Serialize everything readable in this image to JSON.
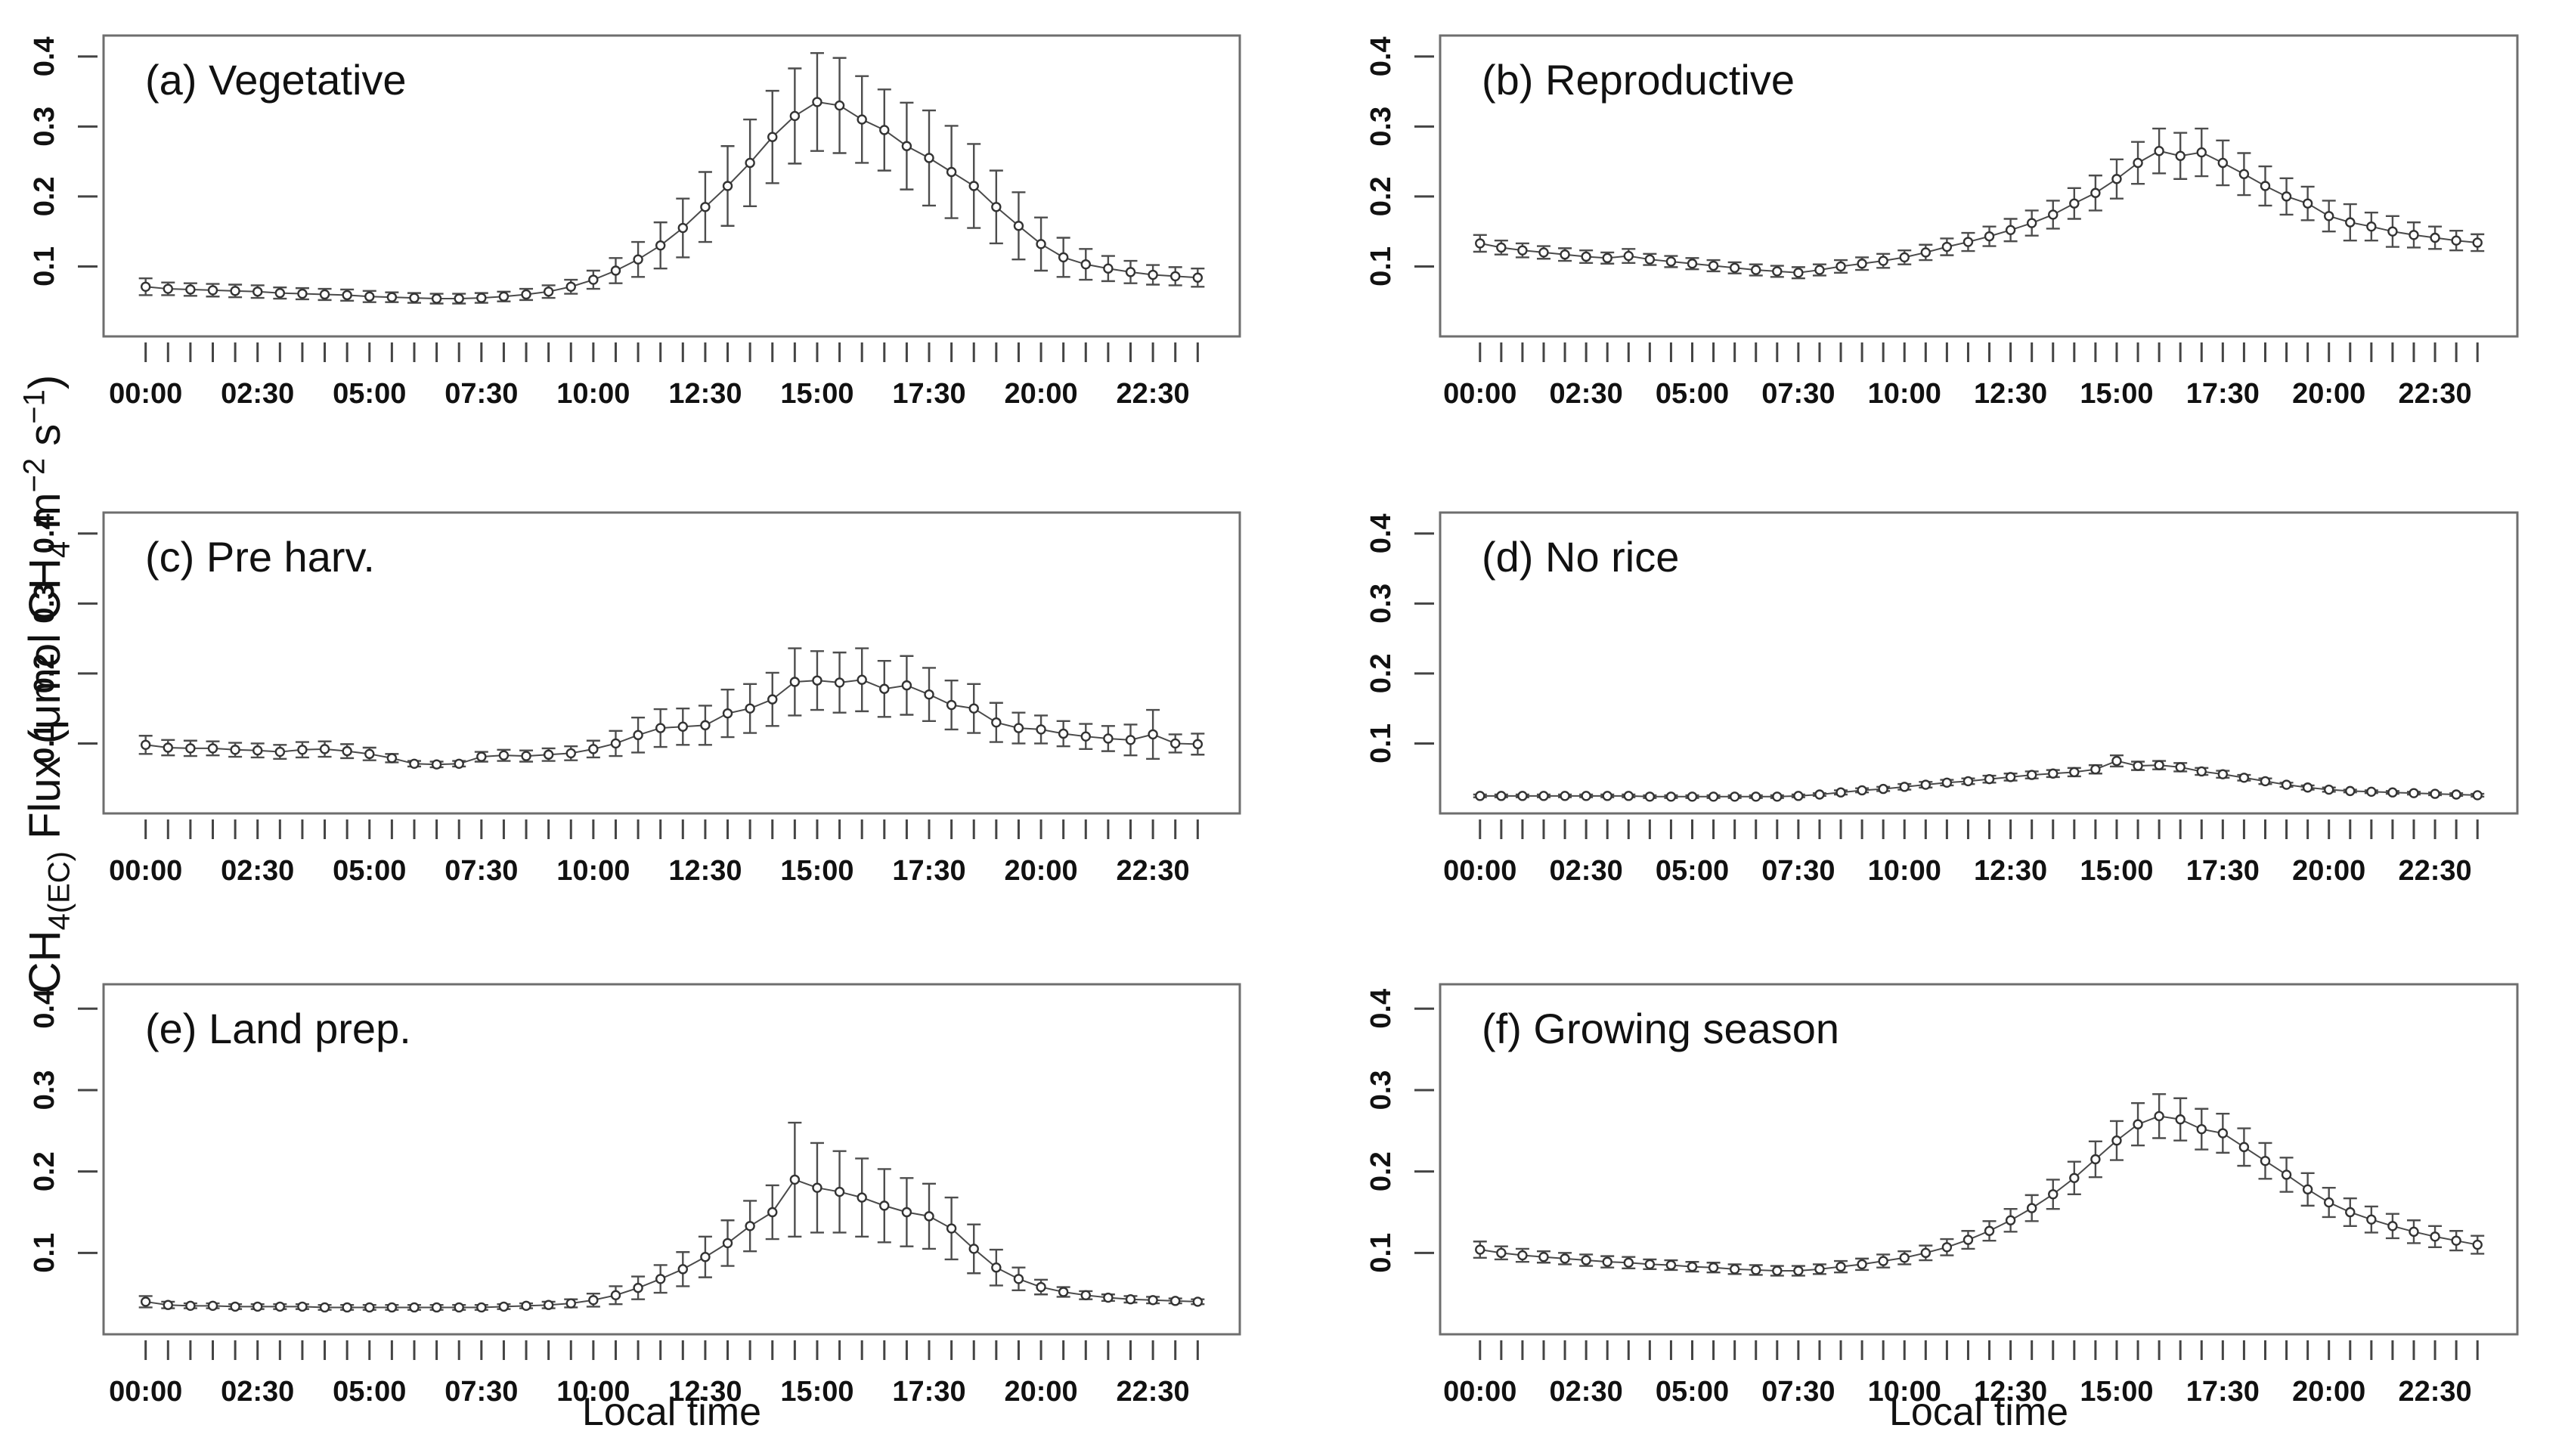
{
  "figure": {
    "background": "#ffffff",
    "box_color": "#6e6e6e",
    "line_color": "#4a4a4a",
    "marker_stroke": "#333333",
    "marker_fill": "#ffffff",
    "errorbar_color": "#4d4d4d",
    "tick_color": "#444444",
    "text_color": "#111111"
  },
  "chart_data": {
    "type": "line",
    "subtype": "diurnal means with error bars, 2x3 small-multiple panels",
    "xlabel": "Local time",
    "ylabel": "CH4(EC) Flux (μmol CH4 m−2 s−1)",
    "ylabel_rich": [
      {
        "text": "CH",
        "style": "normal"
      },
      {
        "text": "4(EC)",
        "style": "sub"
      },
      {
        "text": " Flux (μmol CH",
        "style": "normal"
      },
      {
        "text": "4",
        "style": "sub"
      },
      {
        "text": " m",
        "style": "normal"
      },
      {
        "text": "−2",
        "style": "sup"
      },
      {
        "text": " s",
        "style": "normal"
      },
      {
        "text": "−1",
        "style": "sup"
      },
      {
        "text": ")",
        "style": "normal"
      }
    ],
    "x": [
      "00:00",
      "00:30",
      "01:00",
      "01:30",
      "02:00",
      "02:30",
      "03:00",
      "03:30",
      "04:00",
      "04:30",
      "05:00",
      "05:30",
      "06:00",
      "06:30",
      "07:00",
      "07:30",
      "08:00",
      "08:30",
      "09:00",
      "09:30",
      "10:00",
      "10:30",
      "11:00",
      "11:30",
      "12:00",
      "12:30",
      "13:00",
      "13:30",
      "14:00",
      "14:30",
      "15:00",
      "15:30",
      "16:00",
      "16:30",
      "17:00",
      "17:30",
      "18:00",
      "18:30",
      "19:00",
      "19:30",
      "20:00",
      "20:30",
      "21:00",
      "21:30",
      "22:00",
      "22:30",
      "23:00",
      "23:30"
    ],
    "x_tick_labels": [
      "00:00",
      "02:30",
      "05:00",
      "07:30",
      "10:00",
      "12:30",
      "15:00",
      "17:30",
      "20:00",
      "22:30"
    ],
    "x_tick_label_every": 5,
    "y_ticks": [
      0.1,
      0.2,
      0.3,
      0.4
    ],
    "ylim": [
      0.0,
      0.43
    ],
    "grid": false,
    "legend": "none",
    "marker": "open-circle",
    "panel_layout": {
      "rows": 3,
      "cols": 2,
      "order": "row-major"
    },
    "panels": [
      {
        "id": "a",
        "label": "(a) Vegetative",
        "values": [
          0.071,
          0.068,
          0.067,
          0.066,
          0.065,
          0.064,
          0.062,
          0.061,
          0.06,
          0.059,
          0.057,
          0.056,
          0.055,
          0.054,
          0.054,
          0.055,
          0.057,
          0.06,
          0.064,
          0.071,
          0.081,
          0.094,
          0.11,
          0.13,
          0.155,
          0.185,
          0.215,
          0.248,
          0.285,
          0.315,
          0.335,
          0.33,
          0.31,
          0.295,
          0.272,
          0.255,
          0.235,
          0.215,
          0.185,
          0.158,
          0.132,
          0.113,
          0.103,
          0.097,
          0.092,
          0.088,
          0.086,
          0.084
        ],
        "errors": [
          0.012,
          0.009,
          0.009,
          0.009,
          0.009,
          0.009,
          0.008,
          0.008,
          0.008,
          0.008,
          0.008,
          0.007,
          0.007,
          0.007,
          0.007,
          0.007,
          0.007,
          0.008,
          0.009,
          0.01,
          0.013,
          0.018,
          0.025,
          0.033,
          0.042,
          0.05,
          0.057,
          0.062,
          0.066,
          0.068,
          0.07,
          0.068,
          0.062,
          0.058,
          0.062,
          0.068,
          0.066,
          0.06,
          0.052,
          0.048,
          0.038,
          0.028,
          0.022,
          0.018,
          0.016,
          0.014,
          0.013,
          0.013
        ]
      },
      {
        "id": "b",
        "label": "(b) Reproductive",
        "values": [
          0.133,
          0.127,
          0.123,
          0.12,
          0.117,
          0.114,
          0.112,
          0.115,
          0.11,
          0.107,
          0.104,
          0.101,
          0.098,
          0.095,
          0.093,
          0.091,
          0.095,
          0.1,
          0.104,
          0.108,
          0.113,
          0.12,
          0.128,
          0.135,
          0.143,
          0.152,
          0.162,
          0.174,
          0.19,
          0.205,
          0.225,
          0.248,
          0.265,
          0.258,
          0.263,
          0.248,
          0.232,
          0.215,
          0.2,
          0.19,
          0.172,
          0.163,
          0.157,
          0.15,
          0.145,
          0.141,
          0.137,
          0.134
        ],
        "errors": [
          0.012,
          0.01,
          0.01,
          0.009,
          0.009,
          0.009,
          0.008,
          0.01,
          0.008,
          0.008,
          0.008,
          0.008,
          0.008,
          0.008,
          0.008,
          0.008,
          0.008,
          0.009,
          0.009,
          0.01,
          0.01,
          0.011,
          0.012,
          0.013,
          0.014,
          0.016,
          0.018,
          0.02,
          0.022,
          0.025,
          0.028,
          0.03,
          0.032,
          0.033,
          0.034,
          0.032,
          0.03,
          0.028,
          0.026,
          0.024,
          0.022,
          0.026,
          0.02,
          0.022,
          0.018,
          0.016,
          0.014,
          0.012
        ]
      },
      {
        "id": "c",
        "label": "(c) Pre harv.",
        "values": [
          0.098,
          0.094,
          0.093,
          0.093,
          0.091,
          0.09,
          0.088,
          0.091,
          0.092,
          0.089,
          0.085,
          0.079,
          0.071,
          0.07,
          0.071,
          0.081,
          0.083,
          0.082,
          0.084,
          0.086,
          0.092,
          0.1,
          0.112,
          0.122,
          0.124,
          0.126,
          0.143,
          0.15,
          0.163,
          0.188,
          0.19,
          0.187,
          0.191,
          0.178,
          0.183,
          0.17,
          0.155,
          0.15,
          0.13,
          0.122,
          0.12,
          0.114,
          0.11,
          0.107,
          0.105,
          0.113,
          0.1,
          0.099
        ],
        "errors": [
          0.013,
          0.011,
          0.011,
          0.01,
          0.01,
          0.01,
          0.01,
          0.011,
          0.011,
          0.01,
          0.009,
          0.006,
          0.004,
          0.004,
          0.004,
          0.007,
          0.008,
          0.008,
          0.009,
          0.01,
          0.012,
          0.018,
          0.025,
          0.027,
          0.026,
          0.028,
          0.034,
          0.035,
          0.038,
          0.048,
          0.042,
          0.043,
          0.045,
          0.04,
          0.042,
          0.038,
          0.035,
          0.035,
          0.028,
          0.022,
          0.02,
          0.018,
          0.018,
          0.018,
          0.022,
          0.035,
          0.013,
          0.015
        ]
      },
      {
        "id": "d",
        "label": "(d) No rice",
        "values": [
          0.025,
          0.025,
          0.025,
          0.025,
          0.025,
          0.025,
          0.025,
          0.025,
          0.024,
          0.024,
          0.024,
          0.024,
          0.024,
          0.024,
          0.024,
          0.025,
          0.027,
          0.03,
          0.033,
          0.035,
          0.038,
          0.041,
          0.044,
          0.046,
          0.049,
          0.052,
          0.055,
          0.057,
          0.059,
          0.063,
          0.075,
          0.068,
          0.069,
          0.066,
          0.06,
          0.056,
          0.051,
          0.046,
          0.041,
          0.037,
          0.034,
          0.032,
          0.031,
          0.03,
          0.029,
          0.028,
          0.027,
          0.026
        ],
        "errors": [
          0.002,
          0.002,
          0.002,
          0.002,
          0.002,
          0.002,
          0.002,
          0.002,
          0.002,
          0.002,
          0.002,
          0.002,
          0.002,
          0.002,
          0.002,
          0.002,
          0.002,
          0.003,
          0.003,
          0.003,
          0.004,
          0.004,
          0.004,
          0.004,
          0.005,
          0.005,
          0.005,
          0.005,
          0.006,
          0.006,
          0.008,
          0.006,
          0.006,
          0.006,
          0.005,
          0.005,
          0.004,
          0.004,
          0.003,
          0.003,
          0.003,
          0.002,
          0.002,
          0.002,
          0.002,
          0.002,
          0.002,
          0.002
        ]
      },
      {
        "id": "e",
        "label": "(e) Land prep.",
        "values": [
          0.04,
          0.036,
          0.035,
          0.035,
          0.034,
          0.034,
          0.034,
          0.034,
          0.033,
          0.033,
          0.033,
          0.033,
          0.033,
          0.033,
          0.033,
          0.033,
          0.034,
          0.035,
          0.036,
          0.038,
          0.042,
          0.048,
          0.057,
          0.068,
          0.08,
          0.095,
          0.112,
          0.133,
          0.15,
          0.19,
          0.18,
          0.175,
          0.168,
          0.158,
          0.15,
          0.145,
          0.13,
          0.105,
          0.082,
          0.068,
          0.058,
          0.052,
          0.048,
          0.045,
          0.043,
          0.042,
          0.041,
          0.04
        ],
        "errors": [
          0.007,
          0.004,
          0.003,
          0.003,
          0.003,
          0.003,
          0.003,
          0.003,
          0.003,
          0.003,
          0.003,
          0.003,
          0.003,
          0.003,
          0.003,
          0.003,
          0.003,
          0.003,
          0.004,
          0.005,
          0.008,
          0.011,
          0.014,
          0.017,
          0.021,
          0.025,
          0.028,
          0.031,
          0.033,
          0.07,
          0.055,
          0.05,
          0.048,
          0.045,
          0.042,
          0.04,
          0.038,
          0.03,
          0.022,
          0.014,
          0.009,
          0.006,
          0.005,
          0.004,
          0.004,
          0.004,
          0.003,
          0.003
        ]
      },
      {
        "id": "f",
        "label": "(f) Growing season",
        "values": [
          0.104,
          0.1,
          0.097,
          0.095,
          0.093,
          0.091,
          0.089,
          0.088,
          0.086,
          0.085,
          0.083,
          0.082,
          0.08,
          0.079,
          0.078,
          0.078,
          0.08,
          0.083,
          0.086,
          0.09,
          0.094,
          0.1,
          0.107,
          0.116,
          0.127,
          0.14,
          0.155,
          0.172,
          0.192,
          0.215,
          0.238,
          0.258,
          0.268,
          0.264,
          0.252,
          0.247,
          0.23,
          0.213,
          0.196,
          0.178,
          0.162,
          0.15,
          0.141,
          0.133,
          0.126,
          0.12,
          0.115,
          0.11
        ],
        "errors": [
          0.01,
          0.008,
          0.008,
          0.007,
          0.007,
          0.007,
          0.007,
          0.007,
          0.006,
          0.006,
          0.006,
          0.006,
          0.006,
          0.006,
          0.006,
          0.006,
          0.006,
          0.007,
          0.007,
          0.008,
          0.008,
          0.009,
          0.01,
          0.011,
          0.012,
          0.014,
          0.016,
          0.018,
          0.02,
          0.022,
          0.024,
          0.026,
          0.027,
          0.026,
          0.025,
          0.024,
          0.023,
          0.022,
          0.021,
          0.02,
          0.018,
          0.017,
          0.016,
          0.015,
          0.014,
          0.013,
          0.012,
          0.011
        ]
      }
    ]
  }
}
